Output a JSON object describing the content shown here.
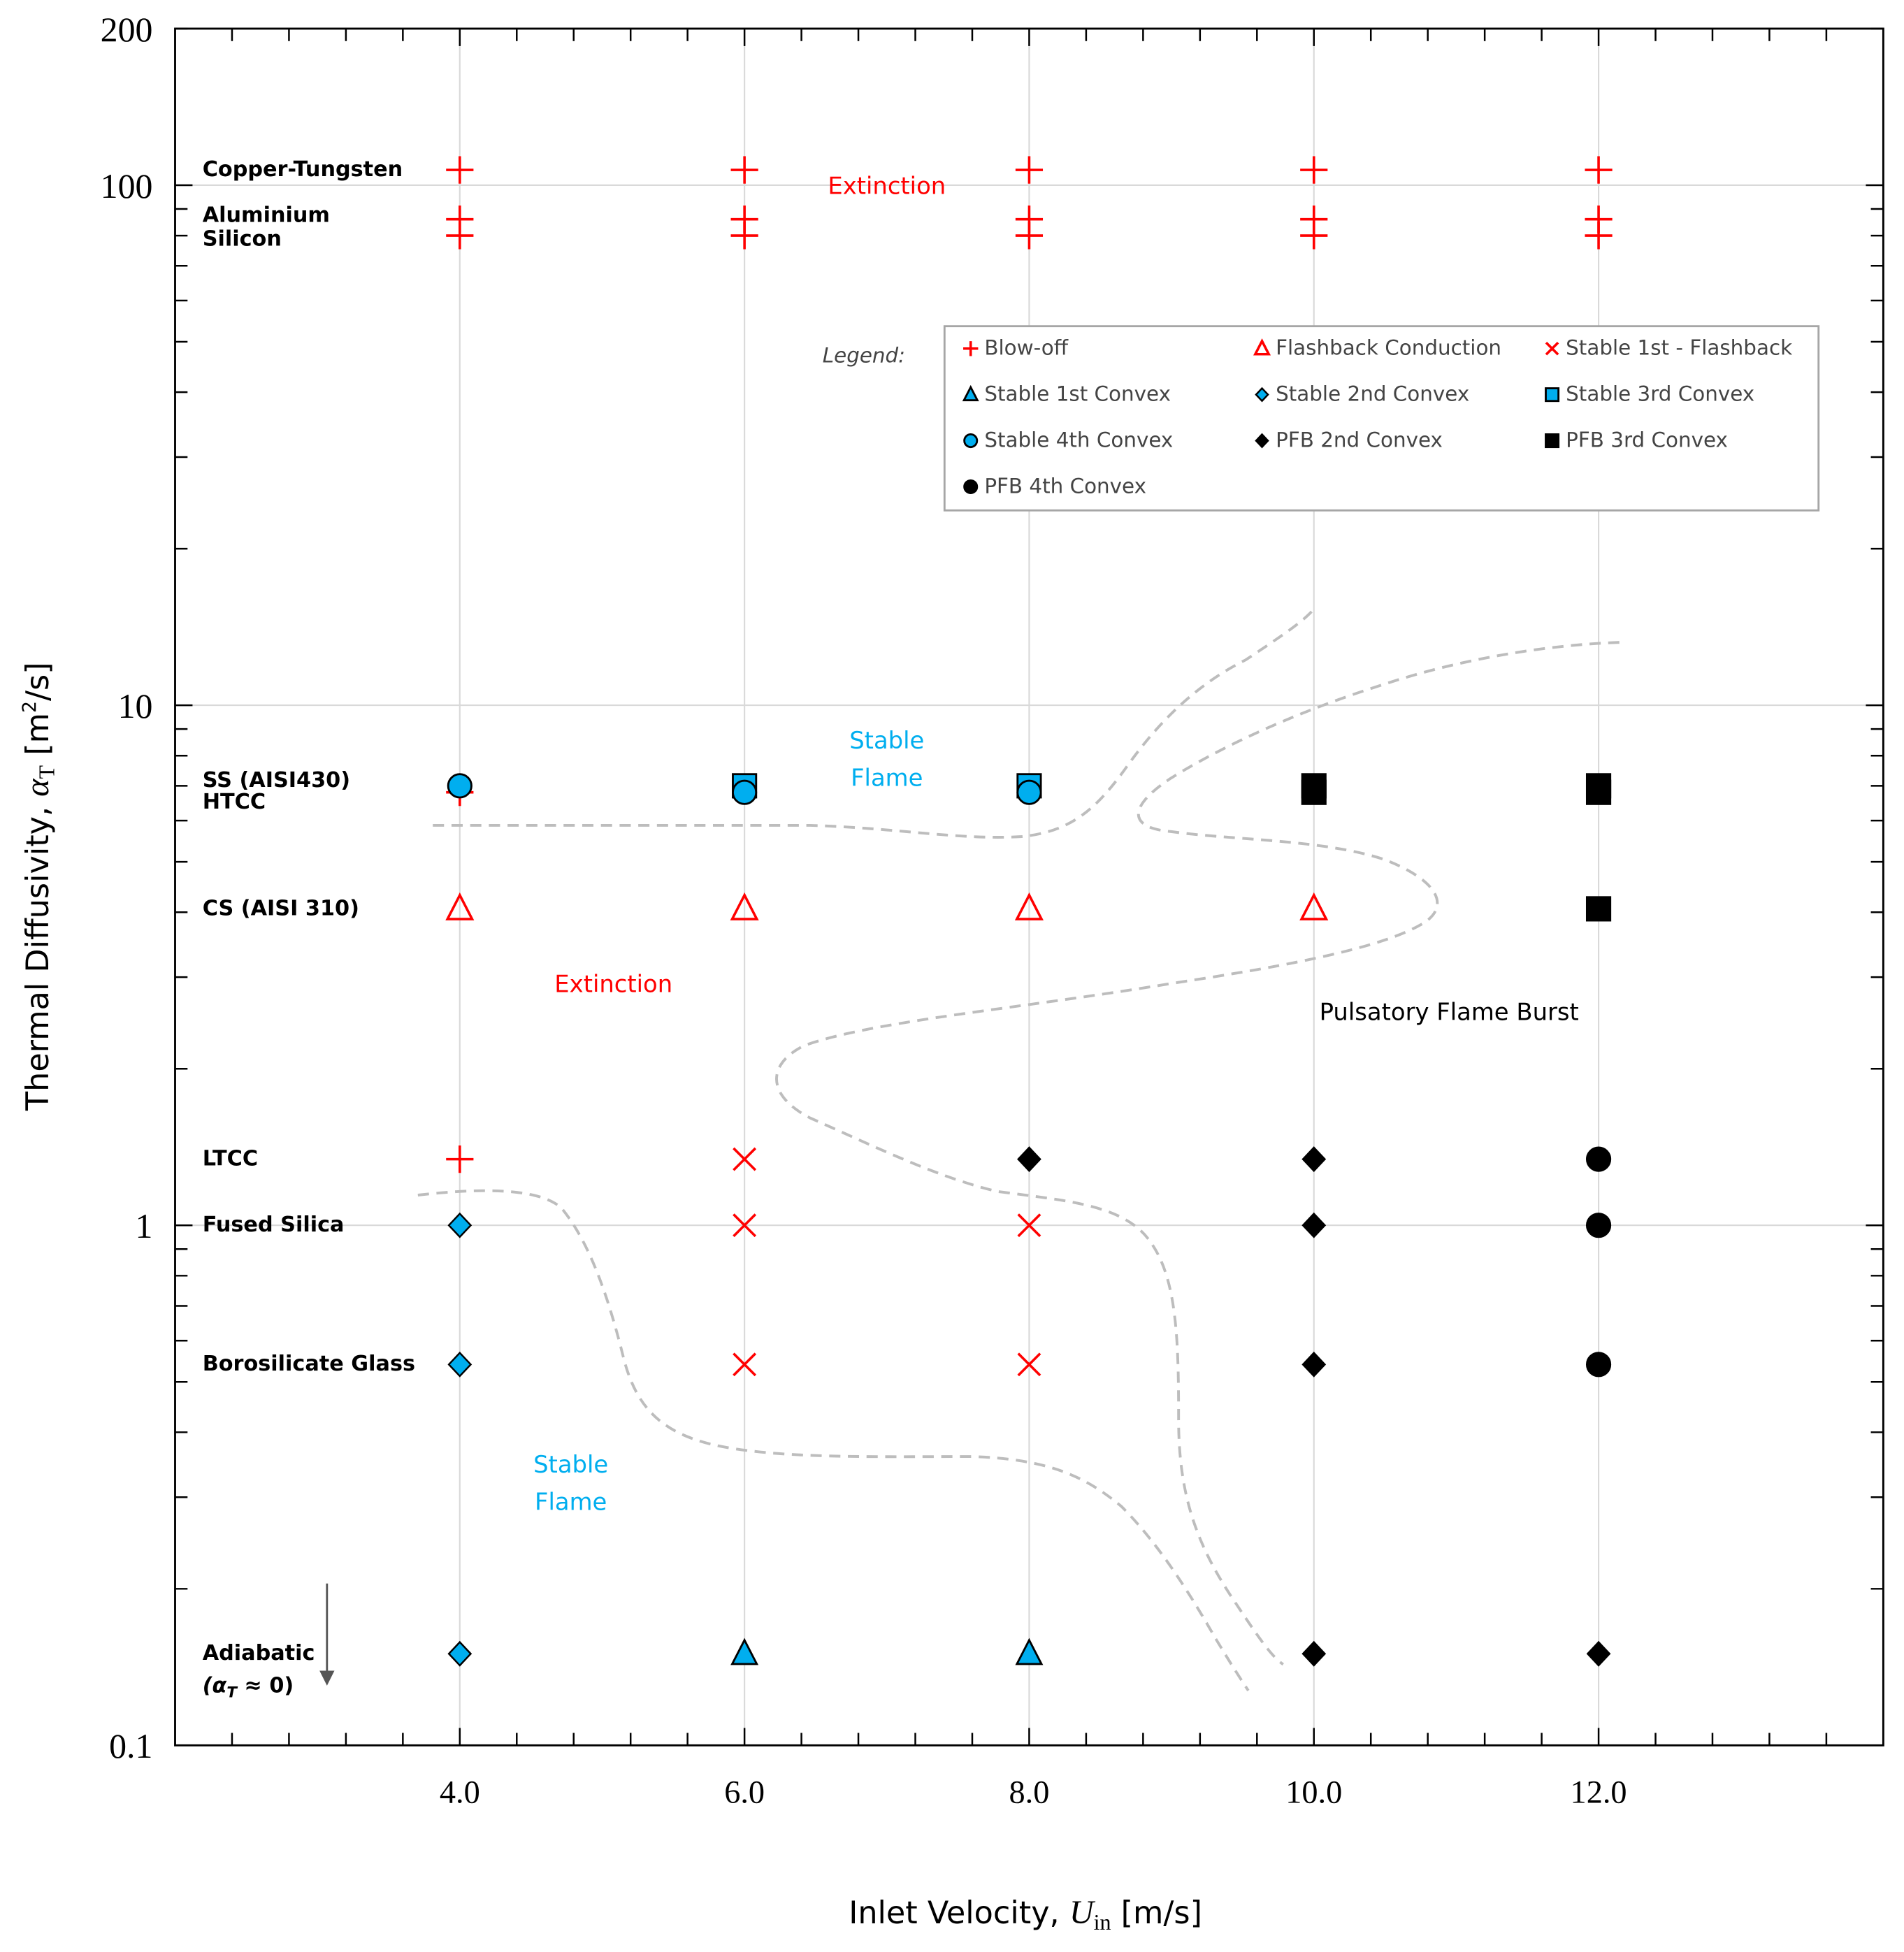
{
  "chart_data": {
    "type": "scatter",
    "xlabel": {
      "main": "Inlet Velocity, ",
      "sym": "U",
      "sub": "in",
      "unit": " [m/s]"
    },
    "ylabel": {
      "main": "Thermal Diffusivity, ",
      "sym": "α",
      "sub": "T",
      "unit": " [m",
      "sup": "2",
      "unit2": "/s]"
    },
    "xlim": [
      2.0,
      14.0
    ],
    "ylim": [
      0.1,
      200
    ],
    "yscale": "log",
    "grid": true,
    "x_ticks": [
      4.0,
      6.0,
      8.0,
      10.0,
      12.0
    ],
    "x_tick_labels": [
      "4.0",
      "6.0",
      "8.0",
      "10.0",
      "12.0"
    ],
    "y_ticks": [
      0.1,
      1,
      10,
      100,
      200
    ],
    "y_tick_labels": [
      "0.1",
      "1",
      "10",
      "100",
      "200"
    ],
    "materials": [
      {
        "name": "Copper-Tungsten",
        "y": 107
      },
      {
        "name": "Aluminium",
        "y": 86
      },
      {
        "name": "Silicon",
        "y": 80
      },
      {
        "name": "SS (AISI430)",
        "y": 7.0
      },
      {
        "name": "HTCC",
        "y": 6.8
      },
      {
        "name": "CS (AISI 310)",
        "y": 4.06
      },
      {
        "name": "LTCC",
        "y": 1.34
      },
      {
        "name": "Fused Silica",
        "y": 1.0
      },
      {
        "name": "Borosilicate Glass",
        "y": 0.54
      },
      {
        "name": "Adiabatic",
        "y": 0.15,
        "extra": "(α",
        "extra_sub": "T",
        "extra_tail": " ≈ 0)"
      }
    ],
    "legend": {
      "title": "Legend:",
      "placement": "top-right"
    },
    "series": [
      {
        "name": "Blow-off",
        "marker": "plus",
        "color": "#ff0000",
        "points": [
          [
            4,
            107
          ],
          [
            6,
            107
          ],
          [
            8,
            107
          ],
          [
            10,
            107
          ],
          [
            12,
            107
          ],
          [
            4,
            86
          ],
          [
            6,
            86
          ],
          [
            8,
            86
          ],
          [
            10,
            86
          ],
          [
            12,
            86
          ],
          [
            4,
            80
          ],
          [
            6,
            80
          ],
          [
            8,
            80
          ],
          [
            10,
            80
          ],
          [
            12,
            80
          ],
          [
            4,
            6.8
          ],
          [
            4,
            1.34
          ]
        ]
      },
      {
        "name": "Flashback Conduction",
        "marker": "triangle-open",
        "color": "#ff0000",
        "points": [
          [
            4,
            4.06
          ],
          [
            6,
            4.06
          ],
          [
            8,
            4.06
          ],
          [
            10,
            4.06
          ]
        ]
      },
      {
        "name": "Stable 1st - Flashback",
        "marker": "x",
        "color": "#ff0000",
        "points": [
          [
            6,
            1.34
          ],
          [
            6,
            1.0
          ],
          [
            8,
            1.0
          ],
          [
            6,
            0.54
          ],
          [
            8,
            0.54
          ]
        ]
      },
      {
        "name": "Stable 1st Convex",
        "marker": "triangle",
        "color": "#00aeef",
        "points": [
          [
            6,
            0.15
          ],
          [
            8,
            0.15
          ]
        ]
      },
      {
        "name": "Stable 2nd Convex",
        "marker": "diamond",
        "color": "#00aeef",
        "points": [
          [
            4,
            1.0
          ],
          [
            4,
            0.54
          ],
          [
            4,
            0.15
          ]
        ]
      },
      {
        "name": "Stable 3rd Convex",
        "marker": "square",
        "color": "#00aeef",
        "points": [
          [
            6,
            7.0
          ],
          [
            8,
            7.0
          ]
        ]
      },
      {
        "name": "Stable 4th Convex",
        "marker": "circle",
        "color": "#00aeef",
        "points": [
          [
            4,
            7.0
          ],
          [
            6,
            6.8
          ],
          [
            8,
            6.8
          ]
        ]
      },
      {
        "name": "PFB 2nd Convex",
        "marker": "diamond",
        "color": "#000000",
        "points": [
          [
            8,
            1.34
          ],
          [
            10,
            1.34
          ],
          [
            10,
            1.0
          ],
          [
            10,
            0.54
          ],
          [
            10,
            0.15
          ],
          [
            12,
            0.15
          ]
        ]
      },
      {
        "name": "PFB 3rd Convex",
        "marker": "square",
        "color": "#000000",
        "points": [
          [
            10,
            7.0
          ],
          [
            10,
            6.8
          ],
          [
            12,
            7.0
          ],
          [
            12,
            6.8
          ],
          [
            12,
            4.06
          ]
        ]
      },
      {
        "name": "PFB 4th Convex",
        "marker": "circle",
        "color": "#000000",
        "points": [
          [
            12,
            1.34
          ],
          [
            12,
            1.0
          ],
          [
            12,
            0.54
          ]
        ]
      }
    ],
    "annotations": [
      {
        "text": "Extinction",
        "x": 7.0,
        "y": 100,
        "color": "#ff0000"
      },
      {
        "text": "Extinction",
        "x": 5.08,
        "y": 2.92,
        "color": "#ff0000"
      },
      {
        "text": "Stable",
        "text2": "Flame",
        "x": 7.0,
        "y": 7.9,
        "color": "#00aeef"
      },
      {
        "text": "Stable",
        "text2": "Flame",
        "x": 4.78,
        "y": 0.32,
        "color": "#00aeef"
      },
      {
        "text": "Pulsatory Flame Burst",
        "x": 10.95,
        "y": 2.58,
        "color": "#000000"
      }
    ]
  }
}
